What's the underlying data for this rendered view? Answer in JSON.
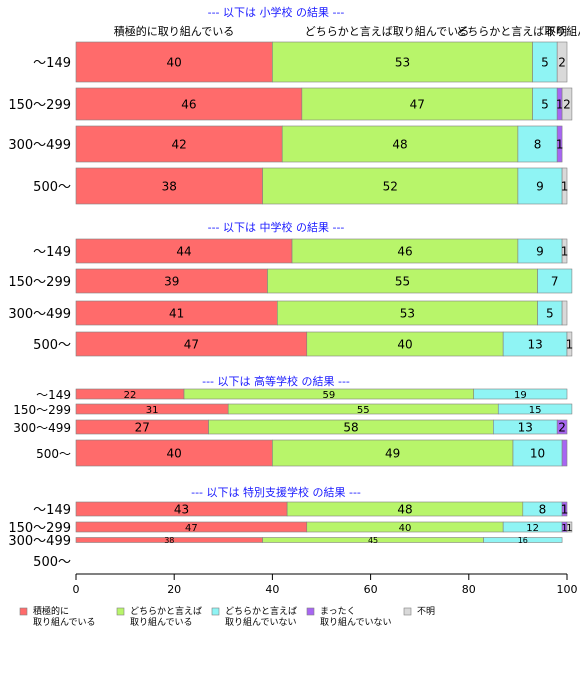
{
  "chart_data": {
    "type": "bar",
    "orientation": "horizontal",
    "stacked": true,
    "xlim": [
      0,
      100
    ],
    "x_ticks": [
      "0",
      "20",
      "40",
      "60",
      "80",
      "100"
    ],
    "top_category_headers": [
      "積極的に取り組んでいる",
      "どちらかと言えば取り組んでいる",
      "どちらかと言えば取り組んでいない",
      "不明"
    ],
    "legend": {
      "placement": "bottom",
      "entries": [
        {
          "label_lines": [
            "積極的に",
            "取り組んでいる"
          ],
          "color": "#ff6b6b"
        },
        {
          "label_lines": [
            "どちらかと言えば",
            "取り組んでいる"
          ],
          "color": "#b8f56a"
        },
        {
          "label_lines": [
            "どちらかと言えば",
            "取り組んでいない"
          ],
          "color": "#8ff4f4"
        },
        {
          "label_lines": [
            "まったく",
            "取り組んでいない"
          ],
          "color": "#a765f2"
        },
        {
          "label_lines": [
            "不明"
          ],
          "color": "#d9d9d9"
        }
      ]
    },
    "series_colors": [
      "#ff6b6b",
      "#b8f56a",
      "#8ff4f4",
      "#a765f2",
      "#d9d9d9"
    ],
    "groups": [
      {
        "title": "--- 以下は 小学校 の結果 ---",
        "rows": [
          {
            "label": "～149",
            "values": [
              40,
              53,
              5,
              0,
              2
            ],
            "labels": [
              "40",
              "53",
              "5",
              "",
              "2"
            ]
          },
          {
            "label": "150～299",
            "values": [
              46,
              47,
              5,
              1,
              2
            ],
            "labels": [
              "46",
              "47",
              "5",
              "1",
              "2"
            ]
          },
          {
            "label": "300～499",
            "values": [
              42,
              48,
              8,
              1,
              0
            ],
            "labels": [
              "42",
              "48",
              "8",
              "1",
              ""
            ]
          },
          {
            "label": "500～",
            "values": [
              38,
              52,
              9,
              0,
              1
            ],
            "labels": [
              "38",
              "52",
              "9",
              "",
              "1"
            ]
          }
        ]
      },
      {
        "title": "--- 以下は 中学校 の結果 ---",
        "rows": [
          {
            "label": "～149",
            "values": [
              44,
              46,
              9,
              0,
              1
            ],
            "labels": [
              "44",
              "46",
              "9",
              "",
              "1"
            ]
          },
          {
            "label": "150～299",
            "values": [
              39,
              55,
              7,
              0,
              0
            ],
            "labels": [
              "39",
              "55",
              "7",
              "",
              ""
            ]
          },
          {
            "label": "300～499",
            "values": [
              41,
              53,
              5,
              0,
              1
            ],
            "labels": [
              "41",
              "53",
              "5",
              "",
              ""
            ]
          },
          {
            "label": "500～",
            "values": [
              47,
              40,
              13,
              0,
              1
            ],
            "labels": [
              "47",
              "40",
              "13",
              "",
              "1"
            ]
          }
        ]
      },
      {
        "title": "--- 以下は 高等学校 の結果 ---",
        "rows": [
          {
            "label": "～149",
            "values": [
              22,
              59,
              19,
              0,
              0
            ],
            "labels": [
              "22",
              "59",
              "19",
              "",
              ""
            ]
          },
          {
            "label": "150～299",
            "values": [
              31,
              55,
              15,
              0,
              0
            ],
            "labels": [
              "31",
              "55",
              "15",
              "",
              ""
            ]
          },
          {
            "label": "300～499",
            "values": [
              27,
              58,
              13,
              2,
              0
            ],
            "labels": [
              "27",
              "58",
              "13",
              "2",
              ""
            ]
          },
          {
            "label": "500～",
            "values": [
              40,
              49,
              10,
              1,
              0
            ],
            "labels": [
              "40",
              "49",
              "10",
              "",
              ""
            ]
          }
        ]
      },
      {
        "title": "--- 以下は 特別支援学校 の結果 ---",
        "rows": [
          {
            "label": "～149",
            "values": [
              43,
              48,
              8,
              1,
              0
            ],
            "labels": [
              "43",
              "48",
              "8",
              "1",
              ""
            ]
          },
          {
            "label": "150～299",
            "values": [
              47,
              40,
              12,
              1,
              1
            ],
            "labels": [
              "47",
              "40",
              "12",
              "1",
              "1"
            ]
          },
          {
            "label": "300～499",
            "values": [
              38,
              45,
              16,
              0,
              0
            ],
            "labels": [
              "38",
              "45",
              "16",
              "",
              ""
            ]
          },
          {
            "label": "500～",
            "values": [],
            "labels": []
          }
        ]
      }
    ]
  }
}
